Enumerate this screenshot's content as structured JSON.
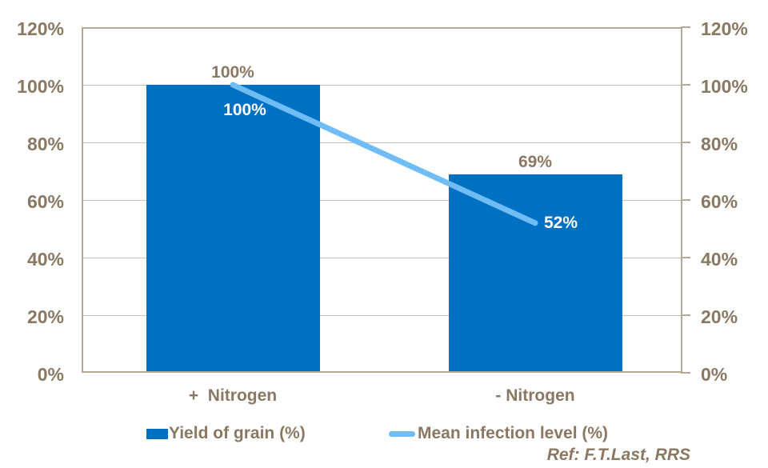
{
  "colors": {
    "bar_blue": "#0070C0",
    "line_blue": "#6FBCF7",
    "text_brown": "#8A7862",
    "grid_line": "#C9C0B4",
    "plot_border": "#B3A894",
    "label_white": "#FFFFFF",
    "background": "#FFFFFF"
  },
  "chart_data": {
    "type": "bar",
    "subtype": "combo-bar-line-dual-axis",
    "title": "",
    "categories": [
      "+  Nitrogen",
      "- Nitrogen"
    ],
    "series": [
      {
        "name": "Yield of grain (%)",
        "type": "bar",
        "values": [
          100,
          69
        ],
        "labels": [
          "100%",
          "69%"
        ],
        "color": "#0070C0"
      },
      {
        "name": "Mean infection level (%)",
        "type": "line",
        "values": [
          100,
          52
        ],
        "labels": [
          "100%",
          "52%"
        ],
        "color": "#6FBCF7"
      }
    ],
    "ylim": [
      0,
      120
    ],
    "ytick_values": [
      120,
      100,
      80,
      60,
      40,
      20,
      0
    ],
    "ytick_labels": [
      "120%",
      "100%",
      "80%",
      "60%",
      "40%",
      "20%",
      "0%"
    ],
    "dual_axis": true,
    "grid": "horizontal",
    "legend_position": "bottom",
    "xlabel": "",
    "ylabel": ""
  },
  "footer": {
    "reference": "Ref: F.T.Last, RRS"
  }
}
